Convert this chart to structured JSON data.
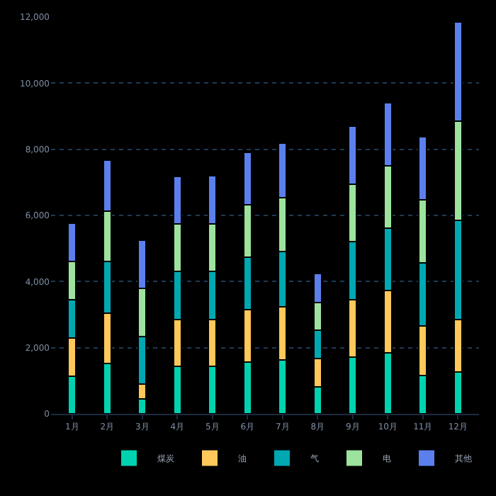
{
  "chart_data": {
    "type": "bar",
    "stacked": true,
    "categories": [
      "1月",
      "2月",
      "3月",
      "4月",
      "5月",
      "6月",
      "7月",
      "8月",
      "9月",
      "10月",
      "11月",
      "12月"
    ],
    "series": [
      {
        "name": "煤炭",
        "color": "#00d2b0",
        "values": [
          1140,
          1520,
          440,
          1430,
          1430,
          1560,
          1620,
          810,
          1720,
          1850,
          1150,
          1270
        ]
      },
      {
        "name": "油",
        "color": "#ffc85a",
        "values": [
          1150,
          1530,
          450,
          1430,
          1430,
          1580,
          1620,
          860,
          1740,
          1880,
          1510,
          1590
        ]
      },
      {
        "name": "气",
        "color": "#00a8b2",
        "values": [
          1150,
          1550,
          1450,
          1440,
          1440,
          1590,
          1660,
          860,
          1750,
          1890,
          1900,
          3000
        ]
      },
      {
        "name": "电",
        "color": "#9de39d",
        "values": [
          1160,
          1520,
          1460,
          1440,
          1440,
          1590,
          1640,
          840,
          1740,
          1890,
          1910,
          3000
        ]
      },
      {
        "name": "其他",
        "color": "#5b80ee",
        "values": [
          1160,
          1550,
          1440,
          1440,
          1470,
          1580,
          1640,
          870,
          1740,
          1900,
          1900,
          2990
        ]
      }
    ],
    "ylim": [
      0,
      12000
    ],
    "yticks": [
      {
        "value": 0,
        "label": "0"
      },
      {
        "value": 2000,
        "label": "2,000"
      },
      {
        "value": 4000,
        "label": "4,000"
      },
      {
        "value": 6000,
        "label": "6,000"
      },
      {
        "value": 8000,
        "label": "8,000"
      },
      {
        "value": 10000,
        "label": "10,000"
      },
      {
        "value": 12000,
        "label": "12,000"
      }
    ],
    "grid": "y",
    "legend": "bottom right"
  }
}
